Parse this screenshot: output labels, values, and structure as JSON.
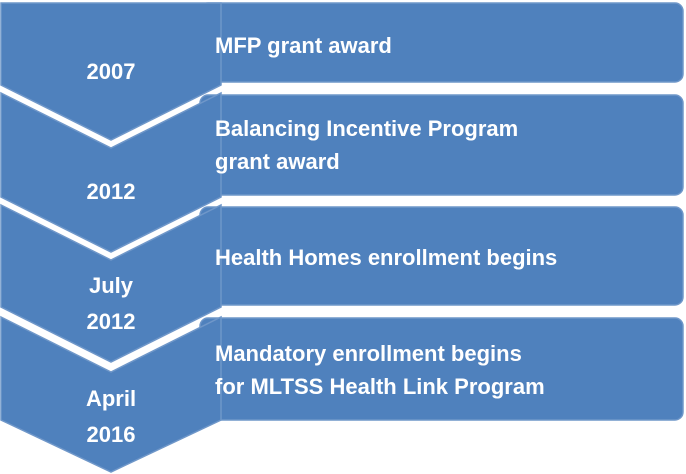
{
  "items": [
    {
      "date": [
        "2007"
      ],
      "text": [
        "MFP grant award"
      ]
    },
    {
      "date": [
        "2012"
      ],
      "text": [
        "Balancing Incentive Program",
        "grant award"
      ]
    },
    {
      "date": [
        "July",
        "2012"
      ],
      "text": [
        "Health Homes enrollment begins"
      ]
    },
    {
      "date": [
        "April",
        "2016"
      ],
      "text": [
        "Mandatory enrollment begins",
        "for MLTSS Health Link Program"
      ]
    }
  ]
}
